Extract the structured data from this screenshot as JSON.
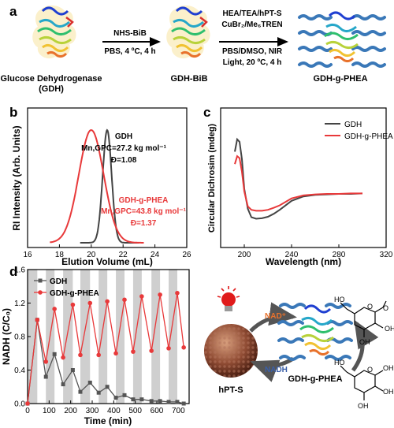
{
  "panels": {
    "a": {
      "letter": "a",
      "gdh_label_1": "Glucose Dehydrogenase",
      "gdh_label_2": "(GDH)",
      "step1_top": "NHS-BiB",
      "step1_bottom": "PBS, 4 ºC, 4 h",
      "gdh_bib_label": "GDH-BiB",
      "step2_line1": "HEA/TEA/hPT-S",
      "step2_line2": "CuBr₂/Me₆TREN",
      "step2_line3": "PBS/DMSO, NIR",
      "step2_line4": "Light, 20 ºC, 4 h",
      "product_label": "GDH-g-PHEA"
    },
    "b": {
      "letter": "b"
    },
    "c": {
      "letter": "c"
    },
    "d": {
      "letter": "d"
    },
    "scheme": {
      "hpts_label": "hPT-S",
      "nad_label": "NAD⁺",
      "nadh_label": "NADH",
      "enzyme_label": "GDH-g-PHEA"
    }
  },
  "chart_data": [
    {
      "panel": "b",
      "type": "line",
      "xlabel": "Elution Volume (mL)",
      "ylabel": "RI Intensity (Arb. Units)",
      "xlim": [
        16,
        26
      ],
      "xticks": [
        16,
        18,
        20,
        22,
        24,
        26
      ],
      "yticks": false,
      "annotations": {
        "gdh": [
          "GDH",
          "Mn,GPC=27.2 kg mol⁻¹",
          "Đ=1.08"
        ],
        "peha": [
          "GDH-g-PHEA",
          "Mn,GPC=43.8 kg mol⁻¹",
          "Đ=1.37"
        ]
      },
      "series": [
        {
          "name": "GDH",
          "color": "#444444",
          "peak_x": 21.0,
          "sigma": 0.28,
          "range": [
            19.3,
            23.0
          ]
        },
        {
          "name": "GDH-g-PHEA",
          "color": "#e8393a",
          "peak_x": 20.0,
          "sigma": 0.78,
          "range": [
            17.4,
            23.3
          ]
        }
      ]
    },
    {
      "panel": "c",
      "type": "line",
      "xlabel": "Wavelength (nm)",
      "ylabel": "Circular Dichrosim (mdeg)",
      "xlim": [
        180,
        320
      ],
      "xticks": [
        200,
        240,
        280,
        320
      ],
      "legend": "top-right",
      "series": [
        {
          "name": "GDH",
          "color": "#444444",
          "x": [
            192,
            194,
            196,
            198,
            200,
            203,
            206,
            210,
            215,
            220,
            225,
            230,
            240,
            250,
            260,
            270,
            280,
            290,
            300
          ],
          "y": [
            8.5,
            11.0,
            10.5,
            7.0,
            1.0,
            -3.0,
            -4.7,
            -5.0,
            -4.9,
            -4.6,
            -4.0,
            -3.2,
            -1.4,
            -0.5,
            -0.2,
            -0.1,
            0.0,
            0.0,
            0.1
          ]
        },
        {
          "name": "GDH-g-PHEA",
          "color": "#e8393a",
          "x": [
            192,
            194,
            196,
            198,
            200,
            203,
            206,
            210,
            215,
            220,
            225,
            230,
            240,
            250,
            260,
            270,
            280,
            290,
            300
          ],
          "y": [
            6.0,
            7.6,
            7.2,
            4.5,
            0.5,
            -2.5,
            -3.2,
            -3.4,
            -3.4,
            -3.2,
            -2.8,
            -2.3,
            -0.9,
            -0.3,
            -0.1,
            0.0,
            0.0,
            0.1,
            0.1
          ]
        }
      ]
    },
    {
      "panel": "d",
      "type": "line",
      "xlabel": "Time (min)",
      "ylabel": "NADH (C/C₀)",
      "xlim": [
        0,
        750
      ],
      "ylim": [
        0,
        1.6
      ],
      "xticks": [
        0,
        100,
        200,
        300,
        400,
        500,
        600,
        700
      ],
      "yticks": [
        0.0,
        0.4,
        0.8,
        1.2,
        1.6
      ],
      "legend": "top-left",
      "shaded_intervals": [
        [
          0,
          45
        ],
        [
          85,
          125
        ],
        [
          165,
          210
        ],
        [
          245,
          290
        ],
        [
          330,
          370
        ],
        [
          410,
          450
        ],
        [
          490,
          530
        ],
        [
          575,
          615
        ],
        [
          655,
          695
        ]
      ],
      "series": [
        {
          "name": "GDH",
          "color": "#555555",
          "marker": "square",
          "x": [
            0,
            45,
            85,
            125,
            165,
            210,
            245,
            290,
            330,
            370,
            410,
            450,
            490,
            530,
            575,
            615,
            655,
            695,
            725
          ],
          "y": [
            0.0,
            1.0,
            0.32,
            0.59,
            0.23,
            0.4,
            0.14,
            0.25,
            0.13,
            0.2,
            0.07,
            0.1,
            0.05,
            0.05,
            0.03,
            0.03,
            0.02,
            0.02,
            0.0
          ]
        },
        {
          "name": "GDH-g-PHEA",
          "color": "#e8393a",
          "marker": "circle",
          "x": [
            0,
            45,
            85,
            125,
            165,
            210,
            245,
            290,
            330,
            370,
            410,
            450,
            490,
            530,
            575,
            615,
            655,
            695,
            725
          ],
          "y": [
            0.0,
            1.0,
            0.5,
            1.13,
            0.55,
            1.18,
            0.58,
            1.2,
            0.58,
            1.22,
            0.6,
            1.24,
            0.62,
            1.28,
            0.63,
            1.3,
            0.66,
            1.32,
            0.67
          ]
        }
      ]
    }
  ]
}
